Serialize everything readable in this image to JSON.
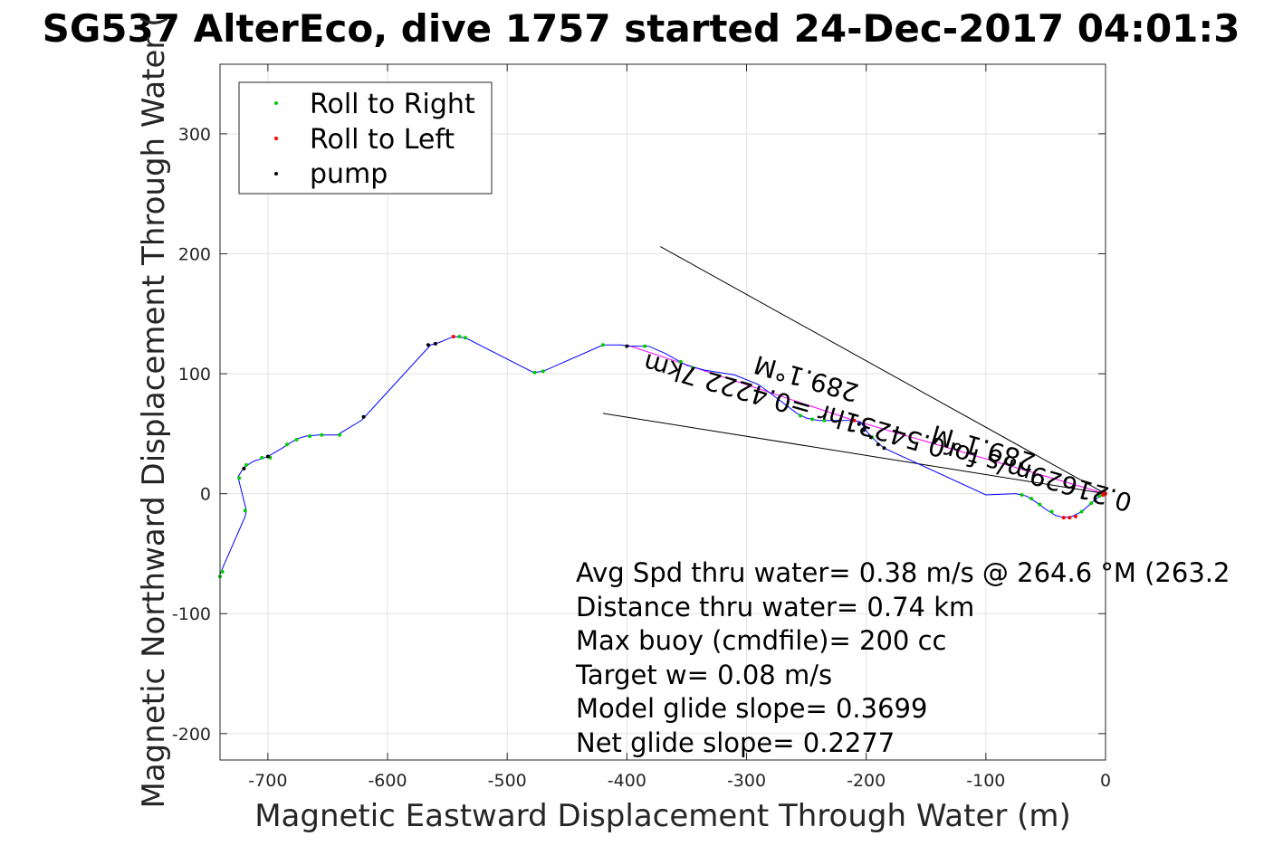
{
  "chart_data": {
    "type": "scatter",
    "title": "SG537 AlterEco, dive 1757 started 24-Dec-2017 04:01:3",
    "xlabel": "Magnetic Eastward Displacement Through Water (m)",
    "ylabel": "Magnetic Northward Displacement Through Water (",
    "xlim": [
      -740,
      0
    ],
    "ylim": [
      -222,
      358
    ],
    "grid": true,
    "x_ticks": [
      -700,
      -600,
      -500,
      -400,
      -300,
      -200,
      -100,
      0
    ],
    "x_tick_labels": [
      "-700",
      "-600",
      "-500",
      "-400",
      "-300",
      "-200",
      "-100",
      "0"
    ],
    "y_ticks": [
      -200,
      -100,
      0,
      100,
      200,
      300
    ],
    "y_tick_labels": [
      "-200",
      "-100",
      "0",
      "100",
      "200",
      "300"
    ],
    "legend": {
      "placement": "top-left",
      "entries": [
        {
          "label": "Roll to Right",
          "color": "#00cc00"
        },
        {
          "label": "Roll to Left",
          "color": "#ff0000"
        },
        {
          "label": "pump",
          "color": "#000000"
        }
      ]
    },
    "track": {
      "color": "#0000ff",
      "points": [
        [
          0,
          0
        ],
        [
          -5,
          -2
        ],
        [
          -12,
          -8
        ],
        [
          -20,
          -15
        ],
        [
          -28,
          -19
        ],
        [
          -35,
          -20
        ],
        [
          -42,
          -18
        ],
        [
          -50,
          -13
        ],
        [
          -58,
          -7
        ],
        [
          -66,
          -2
        ],
        [
          -75,
          0
        ],
        [
          -100,
          -1
        ],
        [
          -185,
          38
        ],
        [
          -192,
          44
        ],
        [
          -198,
          50
        ],
        [
          -205,
          60
        ],
        [
          -212,
          61
        ],
        [
          -240,
          61
        ],
        [
          -250,
          63
        ],
        [
          -258,
          67
        ],
        [
          -275,
          80
        ],
        [
          -290,
          91
        ],
        [
          -310,
          99
        ],
        [
          -335,
          103
        ],
        [
          -350,
          107
        ],
        [
          -368,
          117
        ],
        [
          -382,
          123
        ],
        [
          -398,
          123
        ],
        [
          -405,
          124
        ],
        [
          -420,
          124
        ],
        [
          -470,
          102
        ],
        [
          -478,
          101
        ],
        [
          -535,
          130
        ],
        [
          -545,
          131
        ],
        [
          -557,
          126
        ],
        [
          -564,
          124
        ],
        [
          -620,
          63
        ],
        [
          -622,
          61
        ],
        [
          -642,
          49
        ],
        [
          -658,
          49
        ],
        [
          -668,
          48
        ],
        [
          -675,
          46
        ],
        [
          -682,
          42
        ],
        [
          -688,
          38
        ],
        [
          -700,
          31
        ],
        [
          -712,
          27
        ],
        [
          -720,
          22
        ],
        [
          -725,
          14
        ],
        [
          -718,
          -14
        ],
        [
          -719,
          -19
        ],
        [
          -737,
          -60
        ],
        [
          -740,
          -67
        ]
      ]
    },
    "roll_right": [
      [
        -5,
        -2
      ],
      [
        -12,
        -8
      ],
      [
        -20,
        -15
      ],
      [
        -45,
        -15
      ],
      [
        -55,
        -9
      ],
      [
        -62,
        -4
      ],
      [
        -70,
        -1
      ],
      [
        -195,
        47
      ],
      [
        -235,
        61
      ],
      [
        -245,
        62
      ],
      [
        -255,
        65
      ],
      [
        -345,
        105
      ],
      [
        -355,
        110
      ],
      [
        -385,
        123
      ],
      [
        -420,
        124
      ],
      [
        -470,
        102
      ],
      [
        -477,
        101
      ],
      [
        -535,
        130
      ],
      [
        -540,
        131
      ],
      [
        -640,
        49
      ],
      [
        -655,
        49
      ],
      [
        -665,
        48
      ],
      [
        -676,
        45
      ],
      [
        -684,
        41
      ],
      [
        -698,
        30
      ],
      [
        -705,
        30
      ],
      [
        -718,
        24
      ],
      [
        -724,
        13
      ],
      [
        -719,
        -14
      ],
      [
        -738,
        -65
      ],
      [
        -740,
        -69
      ]
    ],
    "roll_left": [
      [
        0,
        0
      ],
      [
        -2,
        -1
      ],
      [
        -25,
        -19
      ],
      [
        -30,
        -20
      ],
      [
        -35,
        -20
      ],
      [
        -210,
        61
      ],
      [
        -545,
        131
      ],
      [
        -1,
        1
      ],
      [
        -2,
        -1
      ]
    ],
    "pump": [
      [
        -185,
        38
      ],
      [
        -190,
        41
      ],
      [
        -196,
        47
      ],
      [
        -202,
        53
      ],
      [
        -206,
        58
      ],
      [
        -560,
        125
      ],
      [
        -620,
        64
      ],
      [
        -700,
        31
      ],
      [
        -720,
        21
      ],
      [
        -566,
        124
      ],
      [
        -400,
        123
      ]
    ],
    "heading_path": {
      "color": "#ff00ff",
      "points": [
        [
          0,
          0
        ],
        [
          -210,
          61
        ],
        [
          -400,
          124
        ]
      ]
    },
    "lines": [
      {
        "from": [
          0,
          0
        ],
        "to": [
          -372,
          206
        ]
      },
      {
        "from": [
          0,
          0
        ],
        "to": [
          -420,
          67
        ]
      }
    ],
    "rotated_labels": [
      {
        "text": "289.1°M",
        "x": -248,
        "y": 103,
        "angle": -163.8
      },
      {
        "text": "0.21629m/s for0.54231hr =0.4222 7km",
        "x": -180,
        "y": 58,
        "angle": -163.8
      },
      {
        "text": "289.1°M",
        "x": -100,
        "y": 45,
        "angle": -163.8
      }
    ],
    "annotations": [
      "Avg Spd thru water=  0.38 m/s @ 264.6 °M (263.2",
      "Distance thru water=  0.74 km",
      "Max buoy (cmdfile)= 200 cc",
      "Target w= 0.08 m/s",
      "Model glide slope= 0.3699",
      "Net glide slope= 0.2277"
    ]
  }
}
